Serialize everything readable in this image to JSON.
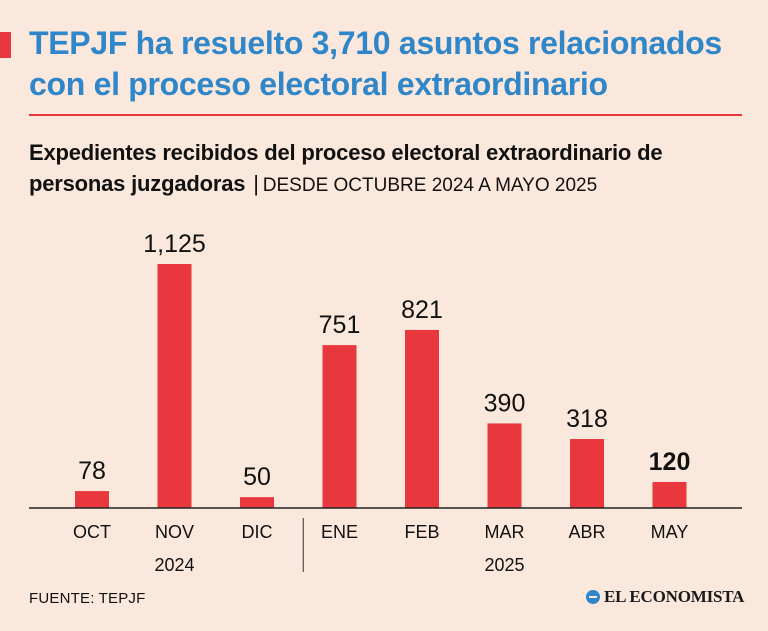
{
  "headline": "TEPJF ha resuelto 3,710 asuntos relacionados con el proceso electoral extraordinario",
  "subtitle": {
    "main": "Expedientes recibidos del proceso electoral extraordinario de personas juzgadoras",
    "separator": "|",
    "range": "DESDE OCTUBRE 2024 A MAYO 2025"
  },
  "colors": {
    "accent": "#e8383d",
    "headline": "#2f86c9",
    "background": "#fbe8dc"
  },
  "chart_data": {
    "type": "bar",
    "categories": [
      "OCT",
      "NOV",
      "DIC",
      "ENE",
      "FEB",
      "MAR",
      "ABR",
      "MAY"
    ],
    "values": [
      78,
      1125,
      50,
      751,
      821,
      390,
      318,
      120
    ],
    "data_labels": [
      "78",
      "1,125",
      "50",
      "751",
      "821",
      "390",
      "318",
      "120"
    ],
    "highlight_index": 7,
    "year_groups": [
      {
        "label": "2024",
        "start": 0,
        "end": 2
      },
      {
        "label": "2025",
        "start": 3,
        "end": 7
      }
    ],
    "ylim": [
      0,
      1125
    ],
    "grid": false,
    "bar_color": "#e8383d"
  },
  "footer": {
    "source": "FUENTE: TEPJF",
    "brand": "EL ECONOMISTA",
    "brand_icon": "el-economista-logo-icon"
  }
}
